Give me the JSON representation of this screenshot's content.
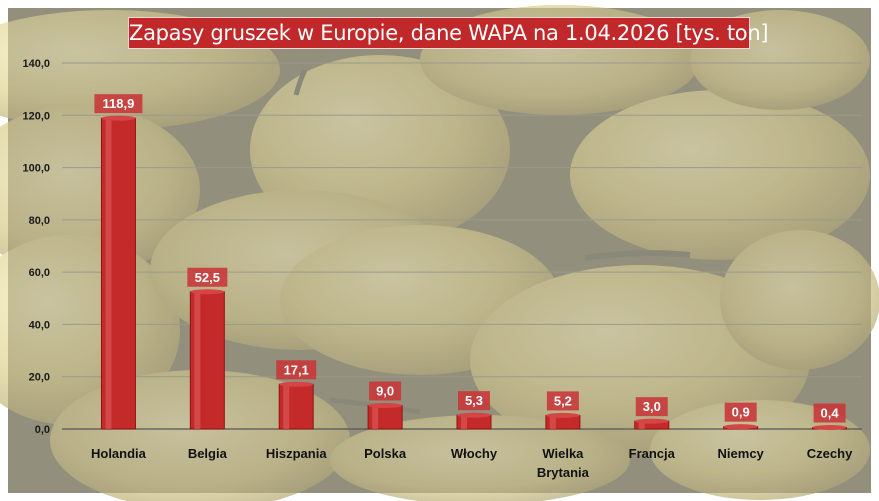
{
  "chart_data": {
    "type": "bar",
    "title": "Zapasy gruszek w Europie, dane WAPA na 1.04.2026  [tys. ton]",
    "categories": [
      "Holandia",
      "Belgia",
      "Hiszpania",
      "Polska",
      "Włochy",
      "Wielka Brytania",
      "Francja",
      "Niemcy",
      "Czechy"
    ],
    "values": [
      118.9,
      52.5,
      17.1,
      9.0,
      5.3,
      5.2,
      3.0,
      0.9,
      0.4
    ],
    "value_labels": [
      "118,9",
      "52,5",
      "17,1",
      "9,0",
      "5,3",
      "5,2",
      "3,0",
      "0,9",
      "0,4"
    ],
    "y_ticks": [
      "0,0",
      "20,0",
      "40,0",
      "60,0",
      "80,0",
      "100,0",
      "120,0",
      "140,0"
    ],
    "ylim": [
      0,
      140
    ],
    "xlabel": "",
    "ylabel": "",
    "grid": true,
    "legend": "none",
    "colors": {
      "bar": "#c42a2a",
      "bar_dark": "#8f1414",
      "label_bg": "#c8383a",
      "title_bg": "#c0282a"
    }
  }
}
